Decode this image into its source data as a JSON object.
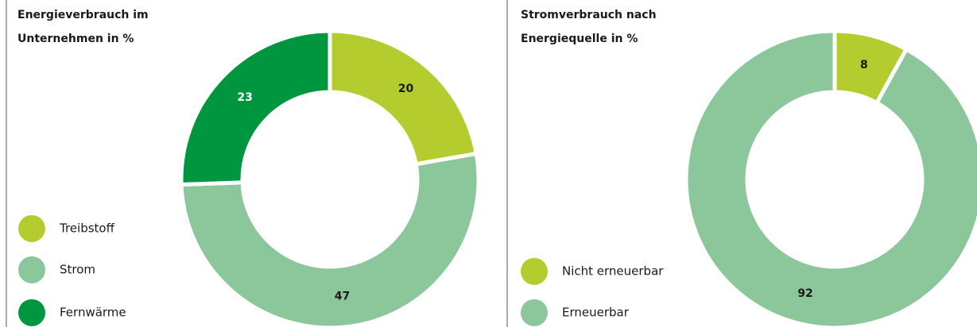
{
  "chart_data": [
    {
      "type": "donut",
      "title": "Energieverbrauch im Unternehmen in %",
      "categories": [
        "Treibstoff",
        "Strom",
        "Fernwärme"
      ],
      "values": [
        20,
        47,
        23
      ],
      "colors": [
        "#b5cc2e",
        "#8bc79b",
        "#009640"
      ]
    },
    {
      "type": "donut",
      "title": "Stromverbrauch nach Energiequelle in %",
      "categories": [
        "Nicht erneuerbar",
        "Erneuerbar"
      ],
      "values": [
        8,
        92
      ],
      "colors": [
        "#b5cc2e",
        "#8bc79b"
      ]
    }
  ]
}
